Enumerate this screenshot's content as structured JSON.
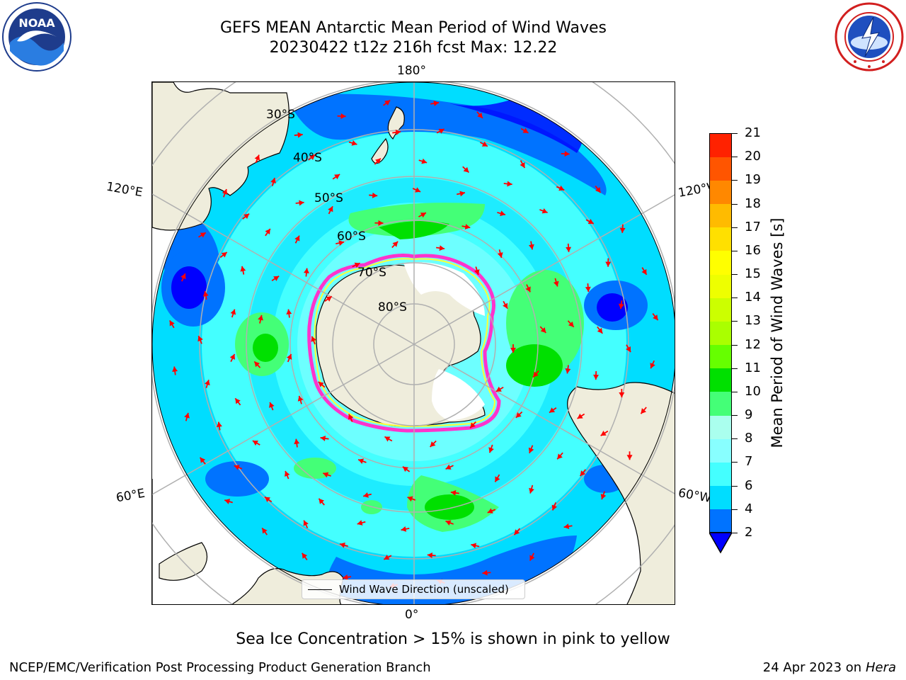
{
  "title": {
    "line1": "GEFS MEAN Antarctic Mean Period of Wind Waves",
    "line2": "20230422 t12z 216h fcst   Max: 12.22"
  },
  "logos": {
    "left": {
      "name": "NOAA",
      "text": "NOAA"
    },
    "right": {
      "name": "National Weather Service"
    }
  },
  "map": {
    "projection": "south-polar-stereographic",
    "longitude_labels": {
      "top": "180°",
      "bottom": "0°",
      "left_upper": "120°E",
      "left_lower": "60°E",
      "right_upper": "120°W",
      "right_lower": "60°W"
    },
    "latitude_labels": [
      "30°S",
      "40°S",
      "50°S",
      "60°S",
      "70°S",
      "80°S"
    ],
    "legend_label": "Wind Wave Direction (unscaled)",
    "colors": {
      "land": "#efeddc",
      "ice_edge": "#ff33cc",
      "ice_inner": "#ffff33",
      "arrow": "#ff0000",
      "gridline": "#b0b0b0"
    }
  },
  "colorbar": {
    "title": "Mean Period of Wind Waves [s]",
    "ticks": [
      "2",
      "4",
      "6",
      "7",
      "8",
      "9",
      "10",
      "11",
      "12",
      "13",
      "14",
      "15",
      "16",
      "17",
      "18",
      "19",
      "20",
      "21"
    ],
    "colors": [
      "#0073ff",
      "#00ddff",
      "#44ffff",
      "#88ffff",
      "#aaffee",
      "#44ff77",
      "#00e000",
      "#66ff00",
      "#aaff00",
      "#ccff00",
      "#eeff00",
      "#ffff00",
      "#ffe000",
      "#ffbb00",
      "#ff8800",
      "#ff5500",
      "#ff2200",
      "#ff0000"
    ],
    "under_color": "#0000ff"
  },
  "footnote": "Sea Ice Concentration > 15% is shown in pink to yellow",
  "credit": {
    "left": "NCEP/EMC/Verification Post Processing Product Generation Branch",
    "right_date": "24 Apr 2023 on",
    "right_host": "Hera"
  }
}
